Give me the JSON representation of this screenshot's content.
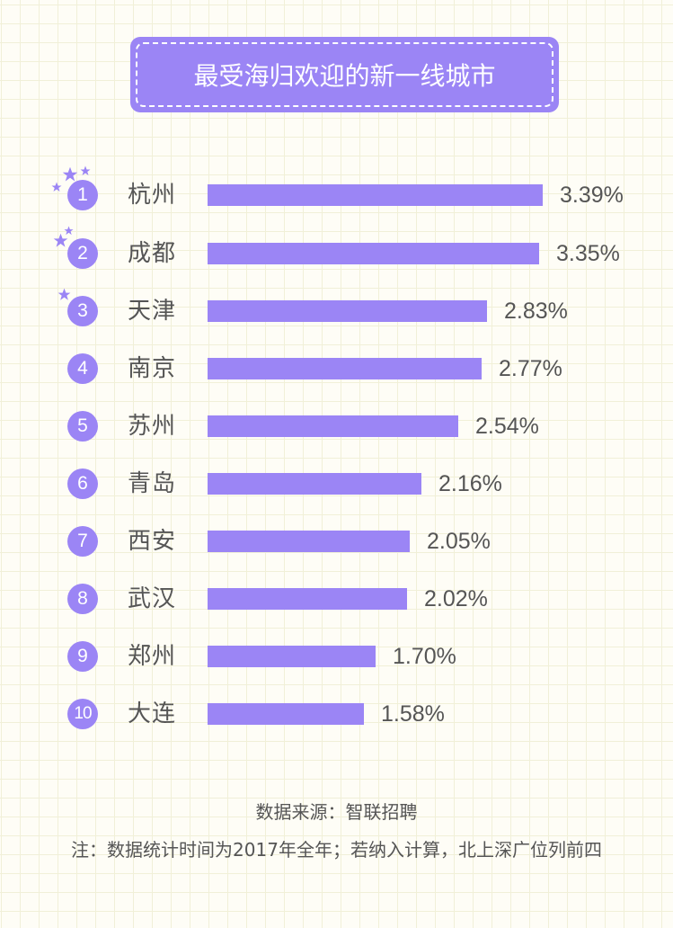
{
  "title": "最受海归欢迎的新一线城市",
  "colors": {
    "accent": "#9b85f5",
    "text": "#555555",
    "background": "#fefdf6",
    "grid": "#f1f0d8"
  },
  "rows": [
    {
      "rank": "1",
      "city": "杭州",
      "value": 3.39,
      "label": "3.39%"
    },
    {
      "rank": "2",
      "city": "成都",
      "value": 3.35,
      "label": "3.35%"
    },
    {
      "rank": "3",
      "city": "天津",
      "value": 2.83,
      "label": "2.83%"
    },
    {
      "rank": "4",
      "city": "南京",
      "value": 2.77,
      "label": "2.77%"
    },
    {
      "rank": "5",
      "city": "苏州",
      "value": 2.54,
      "label": "2.54%"
    },
    {
      "rank": "6",
      "city": "青岛",
      "value": 2.16,
      "label": "2.16%"
    },
    {
      "rank": "7",
      "city": "西安",
      "value": 2.05,
      "label": "2.05%"
    },
    {
      "rank": "8",
      "city": "武汉",
      "value": 2.02,
      "label": "2.02%"
    },
    {
      "rank": "9",
      "city": "郑州",
      "value": 1.7,
      "label": "1.70%"
    },
    {
      "rank": "10",
      "city": "大连",
      "value": 1.58,
      "label": "1.58%"
    }
  ],
  "footer": {
    "source": "数据来源：智联招聘",
    "note": "注：数据统计时间为2017年全年；若纳入计算，北上深广位列前四"
  },
  "chart_data": {
    "type": "bar",
    "orientation": "horizontal",
    "title": "最受海归欢迎的新一线城市",
    "categories": [
      "杭州",
      "成都",
      "天津",
      "南京",
      "苏州",
      "青岛",
      "西安",
      "武汉",
      "郑州",
      "大连"
    ],
    "values": [
      3.39,
      3.35,
      2.83,
      2.77,
      2.54,
      2.16,
      2.05,
      2.02,
      1.7,
      1.58
    ],
    "value_labels": [
      "3.39%",
      "3.35%",
      "2.83%",
      "2.77%",
      "2.54%",
      "2.16%",
      "2.05%",
      "2.02%",
      "1.70%",
      "1.58%"
    ],
    "xlabel": "",
    "ylabel": "",
    "unit": "%",
    "grid": false,
    "legend": null,
    "annotations": [
      "数据来源：智联招聘",
      "注：数据统计时间为2017年全年；若纳入计算，北上深广位列前四"
    ]
  }
}
